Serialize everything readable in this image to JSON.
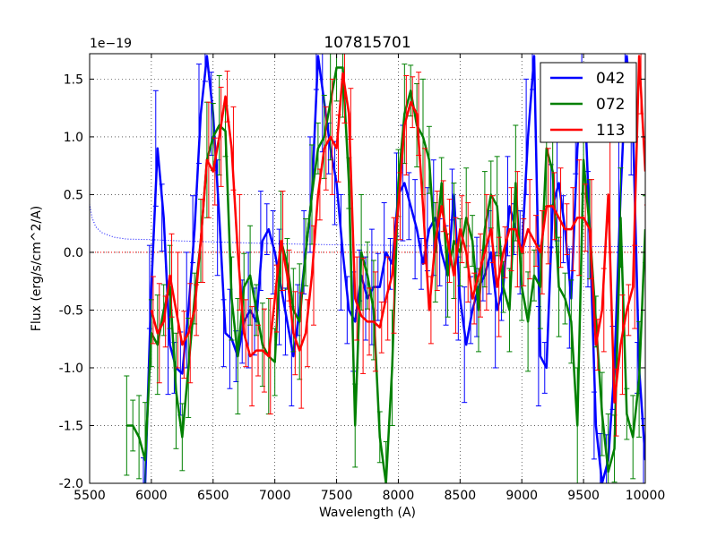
{
  "chart_data": {
    "type": "line",
    "title": "107815701",
    "xlabel": "Wavelength (A)",
    "ylabel": "Flux (erg/s/cm^2/A)",
    "y_offset_label": "1e−19",
    "xlim": [
      5500,
      10000
    ],
    "ylim": [
      -2.0,
      1.72
    ],
    "grid": true,
    "xticks": [
      5500,
      6000,
      6500,
      7000,
      7500,
      8000,
      8500,
      9000,
      9500,
      10000
    ],
    "yticks": [
      -2.0,
      -1.5,
      -1.0,
      -0.5,
      0.0,
      0.5,
      1.0,
      1.5
    ],
    "legend_position": "top-right",
    "reference_lines": [
      {
        "name": "error-curve",
        "color": "#0000ff",
        "style": "dotted",
        "x": [
          5500,
          5520,
          5550,
          5600,
          5700,
          5800,
          6000,
          6200,
          6500,
          7000,
          7500,
          8000,
          8500,
          9000,
          9500,
          10000
        ],
        "y": [
          0.42,
          0.3,
          0.22,
          0.17,
          0.13,
          0.115,
          0.11,
          0.1,
          0.09,
          0.075,
          0.065,
          0.06,
          0.055,
          0.05,
          0.05,
          0.05
        ]
      },
      {
        "name": "zero-line",
        "color": "#ff0000",
        "style": "dotted",
        "x": [
          5500,
          10000
        ],
        "y": [
          0.0,
          0.0
        ]
      }
    ],
    "series": [
      {
        "name": "042",
        "color": "#0000ff",
        "x": [
          5950,
          6000,
          6050,
          6100,
          6150,
          6200,
          6250,
          6300,
          6350,
          6400,
          6450,
          6500,
          6550,
          6600,
          6650,
          6700,
          6750,
          6800,
          6850,
          6900,
          6950,
          7000,
          7050,
          7100,
          7150,
          7200,
          7250,
          7300,
          7350,
          7400,
          7450,
          7500,
          7550,
          7600,
          7650,
          7700,
          7750,
          7800,
          7850,
          7900,
          7950,
          8000,
          8050,
          8100,
          8150,
          8200,
          8250,
          8300,
          8350,
          8400,
          8450,
          8500,
          8550,
          8600,
          8650,
          8700,
          8750,
          8800,
          8850,
          8900,
          8950,
          9000,
          9050,
          9100,
          9150,
          9200,
          9250,
          9300,
          9350,
          9400,
          9450,
          9500,
          9550,
          9600,
          9650,
          9700,
          9750,
          9800,
          9850,
          9900,
          9950,
          10000
        ],
        "y": [
          -2.0,
          -0.3,
          0.9,
          0.3,
          -0.8,
          -1.0,
          -1.05,
          -0.5,
          0.2,
          1.2,
          1.7,
          1.2,
          0.3,
          -0.7,
          -0.75,
          -0.9,
          -0.6,
          -0.5,
          -0.6,
          0.1,
          0.2,
          0.0,
          -0.3,
          -0.6,
          -0.9,
          -0.5,
          0.0,
          0.5,
          1.7,
          1.3,
          0.9,
          0.6,
          0.0,
          -0.5,
          -0.6,
          -0.2,
          -0.4,
          -0.3,
          -0.3,
          0.0,
          -0.1,
          0.5,
          0.6,
          0.4,
          0.2,
          -0.1,
          0.2,
          0.3,
          0.0,
          -0.2,
          0.5,
          -0.4,
          -0.8,
          -0.5,
          -0.3,
          -0.2,
          0.0,
          -0.5,
          -0.3,
          0.4,
          0.2,
          0.0,
          1.0,
          1.7,
          -0.9,
          -1.0,
          0.4,
          0.6,
          0.2,
          -0.4,
          0.9,
          1.6,
          0.2,
          -1.5,
          -2.0,
          -1.8,
          -1.0,
          0.5,
          1.7,
          1.1,
          -1.0,
          -1.8
        ]
      },
      {
        "name": "072",
        "color": "#008000",
        "x": [
          5800,
          5850,
          5900,
          5950,
          6000,
          6050,
          6100,
          6150,
          6200,
          6250,
          6300,
          6350,
          6400,
          6450,
          6500,
          6550,
          6600,
          6650,
          6700,
          6750,
          6800,
          6850,
          6900,
          6950,
          7000,
          7050,
          7100,
          7150,
          7200,
          7250,
          7300,
          7350,
          7400,
          7450,
          7500,
          7550,
          7600,
          7650,
          7700,
          7750,
          7800,
          7850,
          7900,
          7950,
          8000,
          8050,
          8100,
          8150,
          8200,
          8250,
          8300,
          8350,
          8400,
          8450,
          8500,
          8550,
          8600,
          8650,
          8700,
          8750,
          8800,
          8850,
          8900,
          8950,
          9000,
          9050,
          9100,
          9150,
          9200,
          9250,
          9300,
          9350,
          9400,
          9450,
          9500,
          9550,
          9600,
          9650,
          9700,
          9750,
          9800,
          9850,
          9900,
          9950,
          10000
        ],
        "y": [
          -1.5,
          -1.5,
          -1.6,
          -1.8,
          -0.7,
          -0.8,
          -0.5,
          -0.3,
          -1.2,
          -1.6,
          -1.0,
          -0.4,
          0.1,
          0.8,
          1.0,
          1.1,
          1.05,
          -0.4,
          -0.9,
          -0.3,
          -0.2,
          -0.5,
          -0.8,
          -0.9,
          -0.95,
          0.1,
          -0.1,
          -0.5,
          -0.6,
          0.0,
          0.5,
          0.9,
          1.0,
          1.3,
          1.6,
          1.6,
          0.6,
          -1.5,
          0.0,
          -0.2,
          -0.5,
          -1.6,
          -2.0,
          -1.0,
          0.6,
          1.2,
          1.4,
          1.1,
          1.0,
          0.8,
          0.0,
          0.6,
          -0.2,
          0.1,
          0.0,
          0.3,
          0.1,
          -0.5,
          0.2,
          0.5,
          0.4,
          -0.3,
          -0.5,
          0.6,
          -0.3,
          -0.6,
          -0.2,
          -0.3,
          0.9,
          0.7,
          -0.3,
          -0.4,
          -0.6,
          -1.5,
          0.8,
          0.2,
          -0.6,
          -1.4,
          -1.9,
          -1.7,
          0.3,
          -1.4,
          -1.6,
          -1.1,
          0.2
        ]
      },
      {
        "name": "113",
        "color": "#ff0000",
        "x": [
          6000,
          6050,
          6100,
          6150,
          6200,
          6250,
          6300,
          6350,
          6400,
          6450,
          6500,
          6550,
          6600,
          6650,
          6700,
          6750,
          6800,
          6850,
          6900,
          6950,
          7000,
          7050,
          7100,
          7150,
          7200,
          7250,
          7300,
          7350,
          7400,
          7450,
          7500,
          7550,
          7600,
          7650,
          7700,
          7750,
          7800,
          7850,
          7900,
          7950,
          8000,
          8050,
          8100,
          8150,
          8200,
          8250,
          8300,
          8350,
          8400,
          8450,
          8500,
          8550,
          8600,
          8650,
          8700,
          8750,
          8800,
          8850,
          8900,
          8950,
          9000,
          9050,
          9100,
          9150,
          9200,
          9250,
          9300,
          9350,
          9400,
          9450,
          9500,
          9550,
          9600,
          9650,
          9700,
          9750,
          9800,
          9850,
          9900,
          9950,
          10000
        ],
        "y": [
          -0.5,
          -0.7,
          -0.6,
          -0.2,
          -0.5,
          -0.8,
          -0.7,
          -0.5,
          0.1,
          0.8,
          0.7,
          1.0,
          1.35,
          0.9,
          0.0,
          -0.7,
          -0.9,
          -0.85,
          -0.85,
          -0.9,
          -0.4,
          0.1,
          -0.2,
          -0.7,
          -0.85,
          -0.7,
          -0.2,
          0.5,
          0.9,
          1.0,
          0.9,
          1.55,
          1.2,
          -0.4,
          -0.55,
          -0.6,
          -0.6,
          -0.65,
          -0.4,
          -0.2,
          0.4,
          1.1,
          1.3,
          1.2,
          0.4,
          -0.5,
          0.1,
          0.4,
          0.1,
          -0.2,
          0.2,
          0.0,
          -0.4,
          -0.2,
          0.0,
          0.2,
          -0.3,
          0.0,
          0.2,
          0.2,
          0.0,
          0.2,
          0.1,
          0.0,
          0.4,
          0.4,
          0.3,
          0.2,
          0.2,
          0.3,
          0.3,
          0.2,
          -0.8,
          -0.5,
          0.5,
          -1.3,
          -0.8,
          -0.5,
          -0.3,
          1.7,
          0.7
        ]
      }
    ],
    "legend": [
      {
        "label": "042",
        "color": "#0000ff"
      },
      {
        "label": "072",
        "color": "#008000"
      },
      {
        "label": "113",
        "color": "#ff0000"
      }
    ]
  }
}
